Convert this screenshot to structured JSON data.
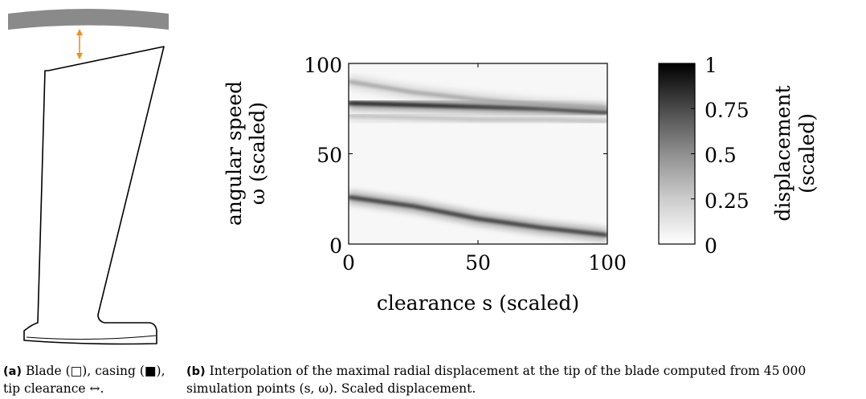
{
  "figure_a": {
    "caption_tag": "(a)",
    "caption_text": "Blade (□), casing (■), tip clearance ↔."
  },
  "figure_b": {
    "caption_tag": "(b)",
    "caption_text": "Interpolation of the maximal radial displacement at the tip of the blade computed from 45 000 simulation points (s, ω). Scaled displacement."
  },
  "colors": {
    "casing": "#8a8a8a",
    "clearance_arrow": "#f0901c",
    "blade_outline": "#000000",
    "colormap_low": "#ffffff",
    "colormap_high": "#000000"
  },
  "chart_data": {
    "type": "heatmap",
    "xlabel": "clearance s (scaled)",
    "ylabel_line1": "angular speed",
    "ylabel_line2": "ω (scaled)",
    "xlim": [
      0,
      100
    ],
    "ylim": [
      0,
      100
    ],
    "x_ticks": [
      "0",
      "50",
      "100"
    ],
    "y_ticks": [
      "0",
      "50",
      "100"
    ],
    "colorbar": {
      "label_line1": "displacement",
      "label_line2": "(scaled)",
      "range": [
        0,
        1
      ],
      "ticks": [
        "0",
        "0.25",
        "0.5",
        "0.75",
        "1"
      ]
    },
    "ridges": [
      {
        "x": [
          0,
          25,
          50,
          75,
          100
        ],
        "y": [
          78,
          77,
          76,
          75,
          73
        ],
        "intensity": 0.9
      },
      {
        "x": [
          0,
          25,
          50,
          75,
          100
        ],
        "y": [
          90,
          84,
          80,
          77,
          75
        ],
        "intensity": 0.35
      },
      {
        "x": [
          0,
          25,
          50,
          75,
          100
        ],
        "y": [
          26,
          21,
          14,
          9,
          5
        ],
        "intensity": 0.8
      },
      {
        "x": [
          0,
          25,
          50,
          75,
          100
        ],
        "y": [
          71,
          70,
          69,
          69,
          68
        ],
        "intensity": 0.25
      }
    ]
  }
}
